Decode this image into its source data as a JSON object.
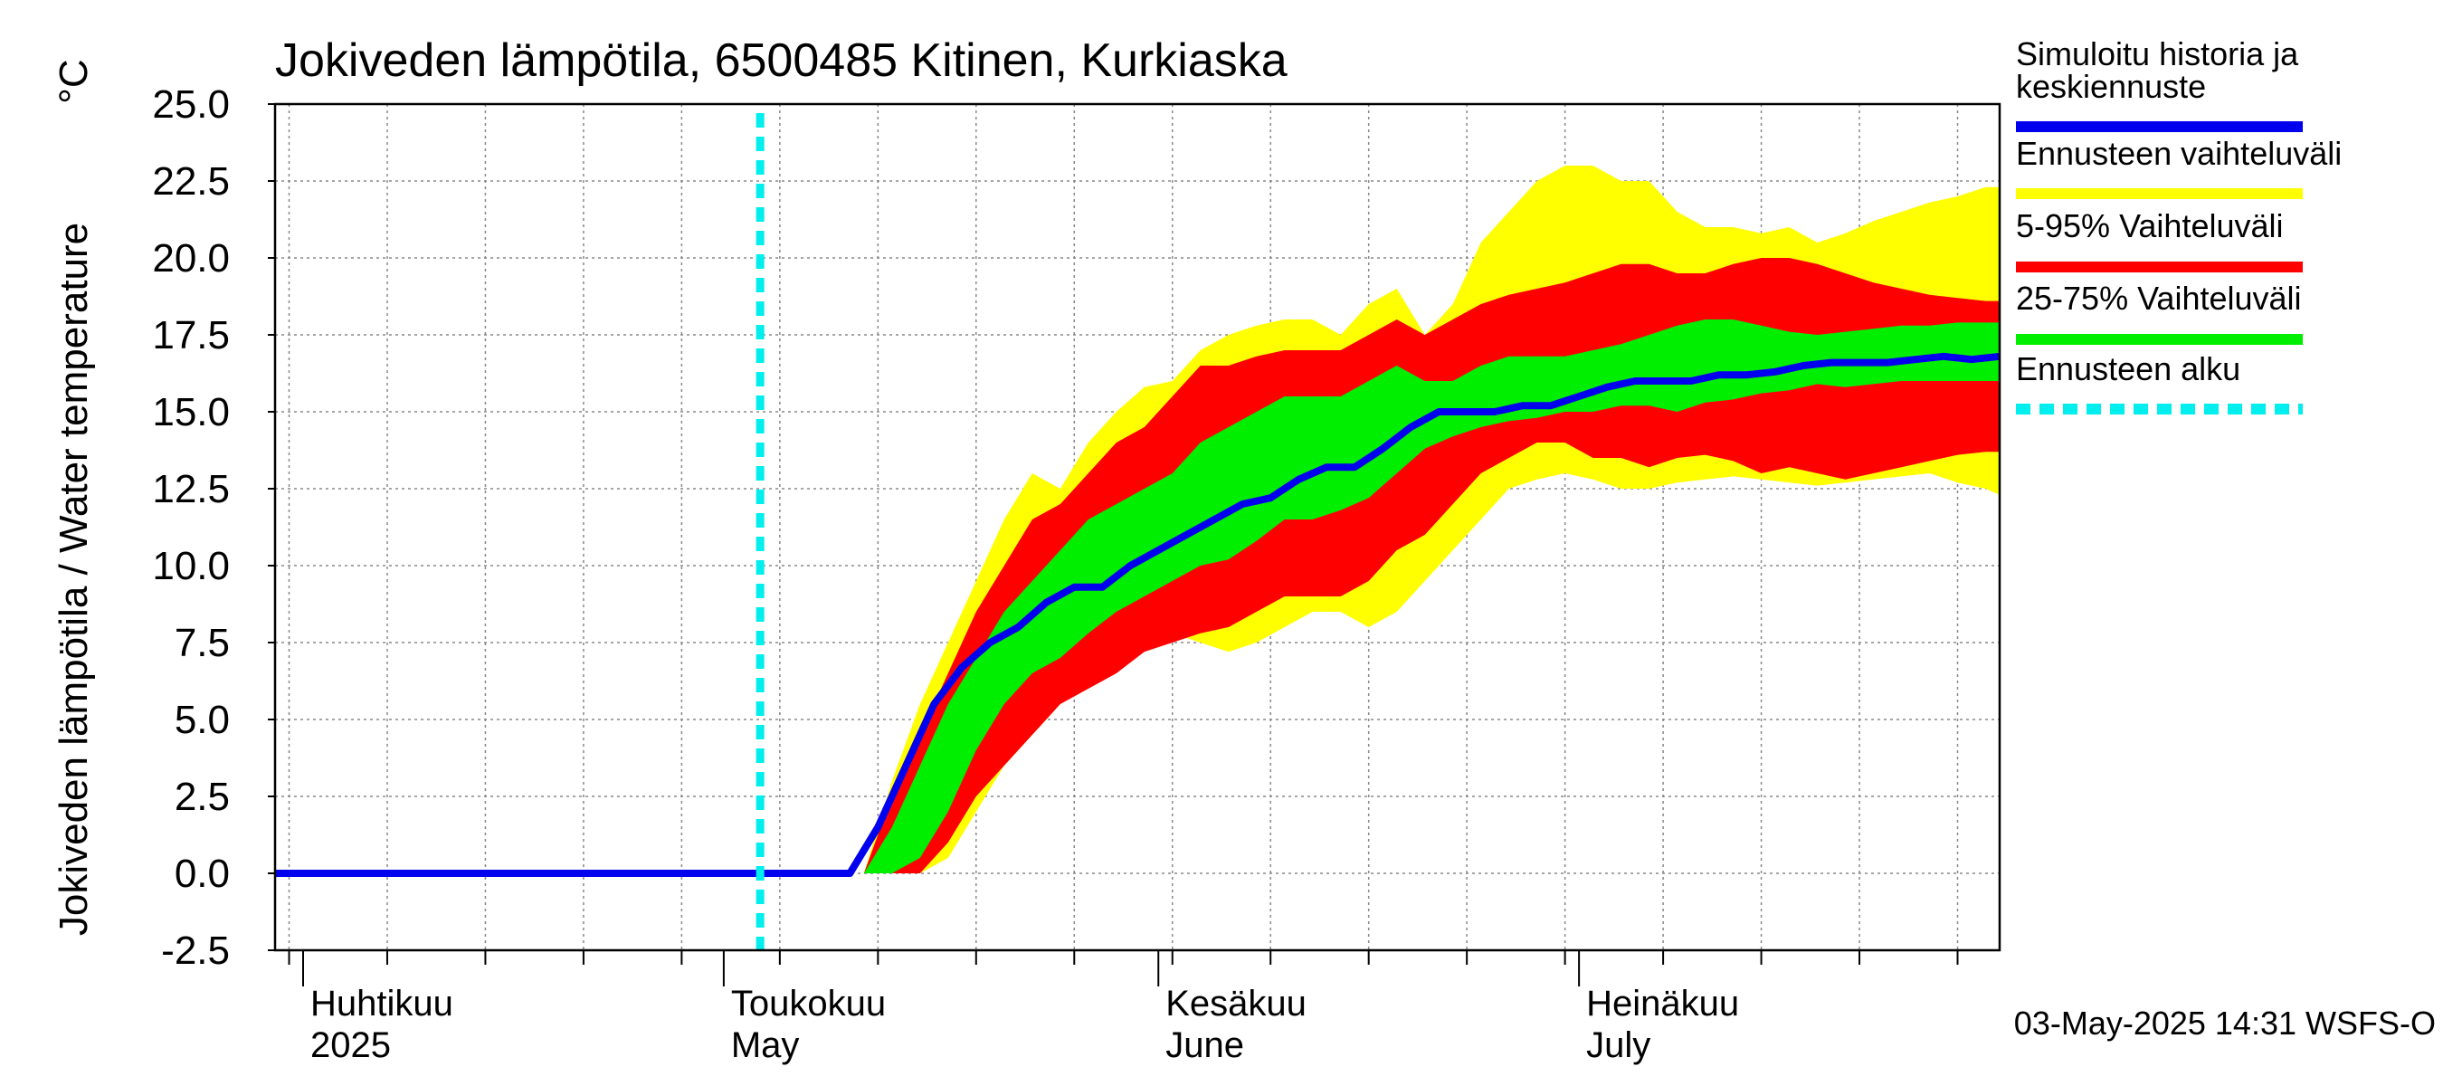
{
  "chart_data": {
    "type": "area",
    "title": "Jokiveden lämpötila, 6500485 Kitinen, Kurkiaska",
    "ylabel": "Jokiveden lämpötila / Water temperature",
    "yunit": "°C",
    "ylim": [
      -2.5,
      25.0
    ],
    "yticks": [
      -2.5,
      0.0,
      2.5,
      5.0,
      7.5,
      10.0,
      12.5,
      15.0,
      17.5,
      20.0,
      22.5,
      25.0
    ],
    "ytick_labels": [
      "-2.5",
      "0.0",
      "2.5",
      "5.0",
      "7.5",
      "10.0",
      "12.5",
      "15.0",
      "17.5",
      "20.0",
      "22.5",
      "25.0"
    ],
    "xlim": [
      "2025-03-30",
      "2025-07-31"
    ],
    "month_labels": [
      {
        "date": "2025-04-01",
        "fi": "Huhtikuu",
        "en": "2025"
      },
      {
        "date": "2025-05-01",
        "fi": "Toukokuu",
        "en": "May"
      },
      {
        "date": "2025-06-01",
        "fi": "Kesäkuu",
        "en": "June"
      },
      {
        "date": "2025-07-01",
        "fi": "Heinäkuu",
        "en": "July"
      }
    ],
    "grid": true,
    "forecast_start": "2025-05-03",
    "timestamp": "03-May-2025 14:31 WSFS-O",
    "legend": {
      "placement": "right",
      "entries": [
        {
          "label": "Simuloitu historia ja keskiennuste",
          "color": "#0000ee",
          "style": "solid"
        },
        {
          "label": "Ennusteen vaihteluväli",
          "color": "#ffff00",
          "style": "solid"
        },
        {
          "label": "5-95% Vaihteluväli",
          "color": "#ff0000",
          "style": "solid"
        },
        {
          "label": "25-75% Vaihteluväli",
          "color": "#00ee00",
          "style": "solid"
        },
        {
          "label": "Ennusteen alku",
          "color": "#00eeee",
          "style": "dashed"
        }
      ]
    },
    "bands_x": [
      "2025-05-11",
      "2025-05-13",
      "2025-05-15",
      "2025-05-17",
      "2025-05-19",
      "2025-05-21",
      "2025-05-23",
      "2025-05-25",
      "2025-05-27",
      "2025-05-29",
      "2025-05-31",
      "2025-06-02",
      "2025-06-04",
      "2025-06-06",
      "2025-06-08",
      "2025-06-10",
      "2025-06-12",
      "2025-06-14",
      "2025-06-16",
      "2025-06-18",
      "2025-06-20",
      "2025-06-22",
      "2025-06-24",
      "2025-06-26",
      "2025-06-28",
      "2025-06-30",
      "2025-07-02",
      "2025-07-04",
      "2025-07-06",
      "2025-07-08",
      "2025-07-10",
      "2025-07-12",
      "2025-07-14",
      "2025-07-16",
      "2025-07-18",
      "2025-07-20",
      "2025-07-22",
      "2025-07-24",
      "2025-07-26",
      "2025-07-28",
      "2025-07-30",
      "2025-07-31"
    ],
    "series": [
      {
        "name": "Ennusteen vaihteluväli",
        "color": "#ffff00",
        "upper": [
          0.0,
          3.0,
          5.5,
          7.5,
          9.5,
          11.5,
          13.0,
          12.5,
          14.0,
          15.0,
          15.8,
          16.0,
          17.0,
          17.5,
          17.8,
          18.0,
          18.0,
          17.5,
          18.5,
          19.0,
          17.5,
          18.5,
          20.5,
          21.5,
          22.5,
          23.0,
          23.0,
          22.5,
          22.5,
          21.5,
          21.0,
          21.0,
          20.8,
          21.0,
          20.5,
          20.8,
          21.2,
          21.5,
          21.8,
          22.0,
          22.3,
          22.3
        ],
        "lower": [
          0.0,
          0.0,
          0.0,
          0.5,
          2.0,
          3.5,
          4.5,
          5.5,
          6.5,
          7.2,
          7.8,
          7.8,
          7.5,
          7.2,
          7.5,
          8.0,
          8.5,
          8.5,
          8.0,
          8.5,
          9.5,
          10.5,
          11.5,
          12.5,
          12.8,
          13.0,
          12.8,
          12.5,
          12.5,
          12.7,
          12.8,
          12.9,
          12.8,
          12.7,
          12.6,
          12.7,
          12.8,
          12.9,
          13.0,
          12.7,
          12.5,
          12.3
        ]
      },
      {
        "name": "5-95% Vaihteluväli",
        "color": "#ff0000",
        "upper": [
          0.0,
          2.5,
          4.5,
          6.5,
          8.5,
          10.0,
          11.5,
          12.0,
          13.0,
          14.0,
          14.5,
          15.5,
          16.5,
          16.5,
          16.8,
          17.0,
          17.0,
          17.0,
          17.5,
          18.0,
          17.5,
          18.0,
          18.5,
          18.8,
          19.0,
          19.2,
          19.5,
          19.8,
          19.8,
          19.5,
          19.5,
          19.8,
          20.0,
          20.0,
          19.8,
          19.5,
          19.2,
          19.0,
          18.8,
          18.7,
          18.6,
          18.6
        ],
        "lower": [
          0.0,
          0.0,
          0.0,
          1.0,
          2.5,
          3.5,
          4.5,
          5.5,
          6.0,
          6.5,
          7.2,
          7.5,
          7.8,
          8.0,
          8.5,
          9.0,
          9.0,
          9.0,
          9.5,
          10.5,
          11.0,
          12.0,
          13.0,
          13.5,
          14.0,
          14.0,
          13.5,
          13.5,
          13.2,
          13.5,
          13.6,
          13.4,
          13.0,
          13.2,
          13.0,
          12.8,
          13.0,
          13.2,
          13.4,
          13.6,
          13.7,
          13.7
        ]
      },
      {
        "name": "25-75% Vaihteluväli",
        "color": "#00ee00",
        "upper": [
          0.0,
          1.5,
          3.5,
          5.5,
          7.0,
          8.5,
          9.5,
          10.5,
          11.5,
          12.0,
          12.5,
          13.0,
          14.0,
          14.5,
          15.0,
          15.5,
          15.5,
          15.5,
          16.0,
          16.5,
          16.0,
          16.0,
          16.5,
          16.8,
          16.8,
          16.8,
          17.0,
          17.2,
          17.5,
          17.8,
          18.0,
          18.0,
          17.8,
          17.6,
          17.5,
          17.6,
          17.7,
          17.8,
          17.8,
          17.9,
          17.9,
          17.9
        ],
        "lower": [
          0.0,
          0.0,
          0.5,
          2.0,
          4.0,
          5.5,
          6.5,
          7.0,
          7.8,
          8.5,
          9.0,
          9.5,
          10.0,
          10.2,
          10.8,
          11.5,
          11.5,
          11.8,
          12.2,
          13.0,
          13.8,
          14.2,
          14.5,
          14.7,
          14.8,
          15.0,
          15.0,
          15.2,
          15.2,
          15.0,
          15.3,
          15.4,
          15.6,
          15.7,
          15.9,
          15.8,
          15.9,
          16.0,
          16.0,
          16.0,
          16.0,
          16.0
        ]
      }
    ],
    "median": {
      "name": "Simuloitu historia ja keskiennuste",
      "color": "#0000ee",
      "x": [
        "2025-03-30",
        "2025-05-10",
        "2025-05-12",
        "2025-05-14",
        "2025-05-16",
        "2025-05-18",
        "2025-05-20",
        "2025-05-22",
        "2025-05-24",
        "2025-05-26",
        "2025-05-28",
        "2025-05-30",
        "2025-06-01",
        "2025-06-03",
        "2025-06-05",
        "2025-06-07",
        "2025-06-09",
        "2025-06-11",
        "2025-06-13",
        "2025-06-15",
        "2025-06-17",
        "2025-06-19",
        "2025-06-21",
        "2025-06-23",
        "2025-06-25",
        "2025-06-27",
        "2025-06-29",
        "2025-07-01",
        "2025-07-03",
        "2025-07-05",
        "2025-07-07",
        "2025-07-09",
        "2025-07-11",
        "2025-07-13",
        "2025-07-15",
        "2025-07-17",
        "2025-07-19",
        "2025-07-21",
        "2025-07-23",
        "2025-07-25",
        "2025-07-27",
        "2025-07-29",
        "2025-07-31"
      ],
      "y": [
        0.0,
        0.0,
        1.5,
        3.5,
        5.5,
        6.7,
        7.5,
        8.0,
        8.8,
        9.3,
        9.3,
        10.0,
        10.5,
        11.0,
        11.5,
        12.0,
        12.2,
        12.8,
        13.2,
        13.2,
        13.8,
        14.5,
        15.0,
        15.0,
        15.0,
        15.2,
        15.2,
        15.5,
        15.8,
        16.0,
        16.0,
        16.0,
        16.2,
        16.2,
        16.3,
        16.5,
        16.6,
        16.6,
        16.6,
        16.7,
        16.8,
        16.7,
        16.8
      ]
    }
  }
}
